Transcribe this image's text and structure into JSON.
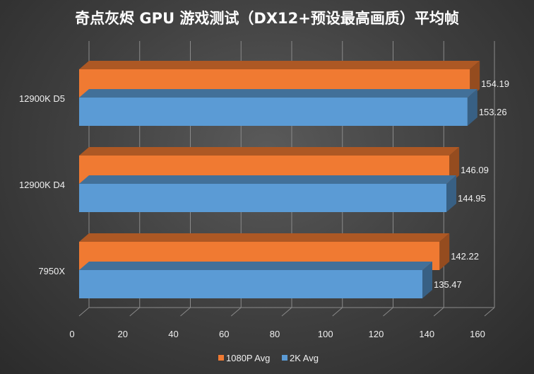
{
  "chart_data": {
    "type": "bar",
    "orientation": "horizontal",
    "title": "奇点灰烬 GPU 游戏测试（DX12+预设最高画质）平均帧",
    "categories": [
      "12900K D5",
      "12900K D4",
      "7950X"
    ],
    "series": [
      {
        "name": "1080P Avg",
        "values": [
          154.19,
          146.09,
          142.22
        ],
        "color": "#f07a32"
      },
      {
        "name": "2K Avg",
        "values": [
          153.26,
          144.95,
          135.47
        ],
        "color": "#5b9bd5"
      }
    ],
    "xlim": [
      0,
      160
    ],
    "xticks": [
      "0",
      "20",
      "40",
      "60",
      "80",
      "100",
      "120",
      "140",
      "160"
    ],
    "grid": true,
    "legend": "bottom",
    "style": "3d"
  }
}
